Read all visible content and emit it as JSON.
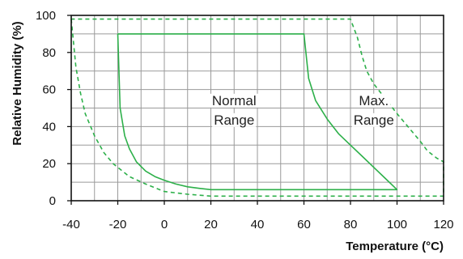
{
  "chart_data": {
    "type": "line",
    "title": "",
    "xlabel": "Temperature (°C)",
    "ylabel": "Relative Humidity (%)",
    "xlim": [
      -40,
      120
    ],
    "ylim": [
      0,
      100
    ],
    "x_ticks": [
      -40,
      -20,
      0,
      20,
      40,
      60,
      80,
      100,
      120
    ],
    "y_ticks": [
      0,
      20,
      40,
      60,
      80,
      100
    ],
    "x_tick_labels": [
      "-40",
      "-20",
      "0",
      "20",
      "40",
      "60",
      "80",
      "100",
      "120"
    ],
    "y_tick_labels": [
      "0",
      "20",
      "40",
      "60",
      "80",
      "100"
    ],
    "grid": true,
    "legend": "none",
    "series_color": "#2db04a",
    "series": [
      {
        "style": "solid",
        "points": [
          [
            -20,
            90
          ],
          [
            -19,
            50
          ],
          [
            -17,
            35
          ],
          [
            -15,
            28
          ],
          [
            -12,
            21
          ],
          [
            -8,
            16
          ],
          [
            -4,
            13
          ],
          [
            0,
            11
          ],
          [
            5,
            9
          ],
          [
            10,
            7.5
          ],
          [
            15,
            6.7
          ],
          [
            20,
            6
          ],
          [
            100,
            6
          ],
          [
            95,
            12
          ],
          [
            90,
            18
          ],
          [
            85,
            24
          ],
          [
            80,
            30
          ],
          [
            75,
            36
          ],
          [
            70,
            44
          ],
          [
            65,
            54
          ],
          [
            62,
            66
          ],
          [
            60,
            90
          ],
          [
            -20,
            90
          ]
        ]
      },
      {
        "style": "dashed",
        "points": [
          [
            -40,
            98
          ],
          [
            -38,
            72
          ],
          [
            -36,
            58
          ],
          [
            -34,
            47
          ],
          [
            -30,
            35
          ],
          [
            -26,
            26
          ],
          [
            -22,
            20
          ],
          [
            -15,
            13
          ],
          [
            -8,
            9
          ],
          [
            0,
            5
          ],
          [
            10,
            3.5
          ],
          [
            20,
            2.5
          ],
          [
            120,
            2.5
          ],
          [
            120,
            21
          ],
          [
            117,
            23
          ],
          [
            113,
            27
          ],
          [
            110,
            32
          ],
          [
            106,
            38
          ],
          [
            100,
            47
          ],
          [
            95,
            55
          ],
          [
            90,
            63
          ],
          [
            87,
            70
          ],
          [
            85,
            78
          ],
          [
            83,
            88
          ],
          [
            80,
            98
          ],
          [
            -40,
            98
          ]
        ]
      }
    ],
    "annotations": [
      {
        "lines": [
          "Normal",
          "Range"
        ],
        "x": 30,
        "y": 42
      },
      {
        "lines": [
          "Max.",
          "Range"
        ],
        "x": 90,
        "y": 42
      }
    ]
  }
}
